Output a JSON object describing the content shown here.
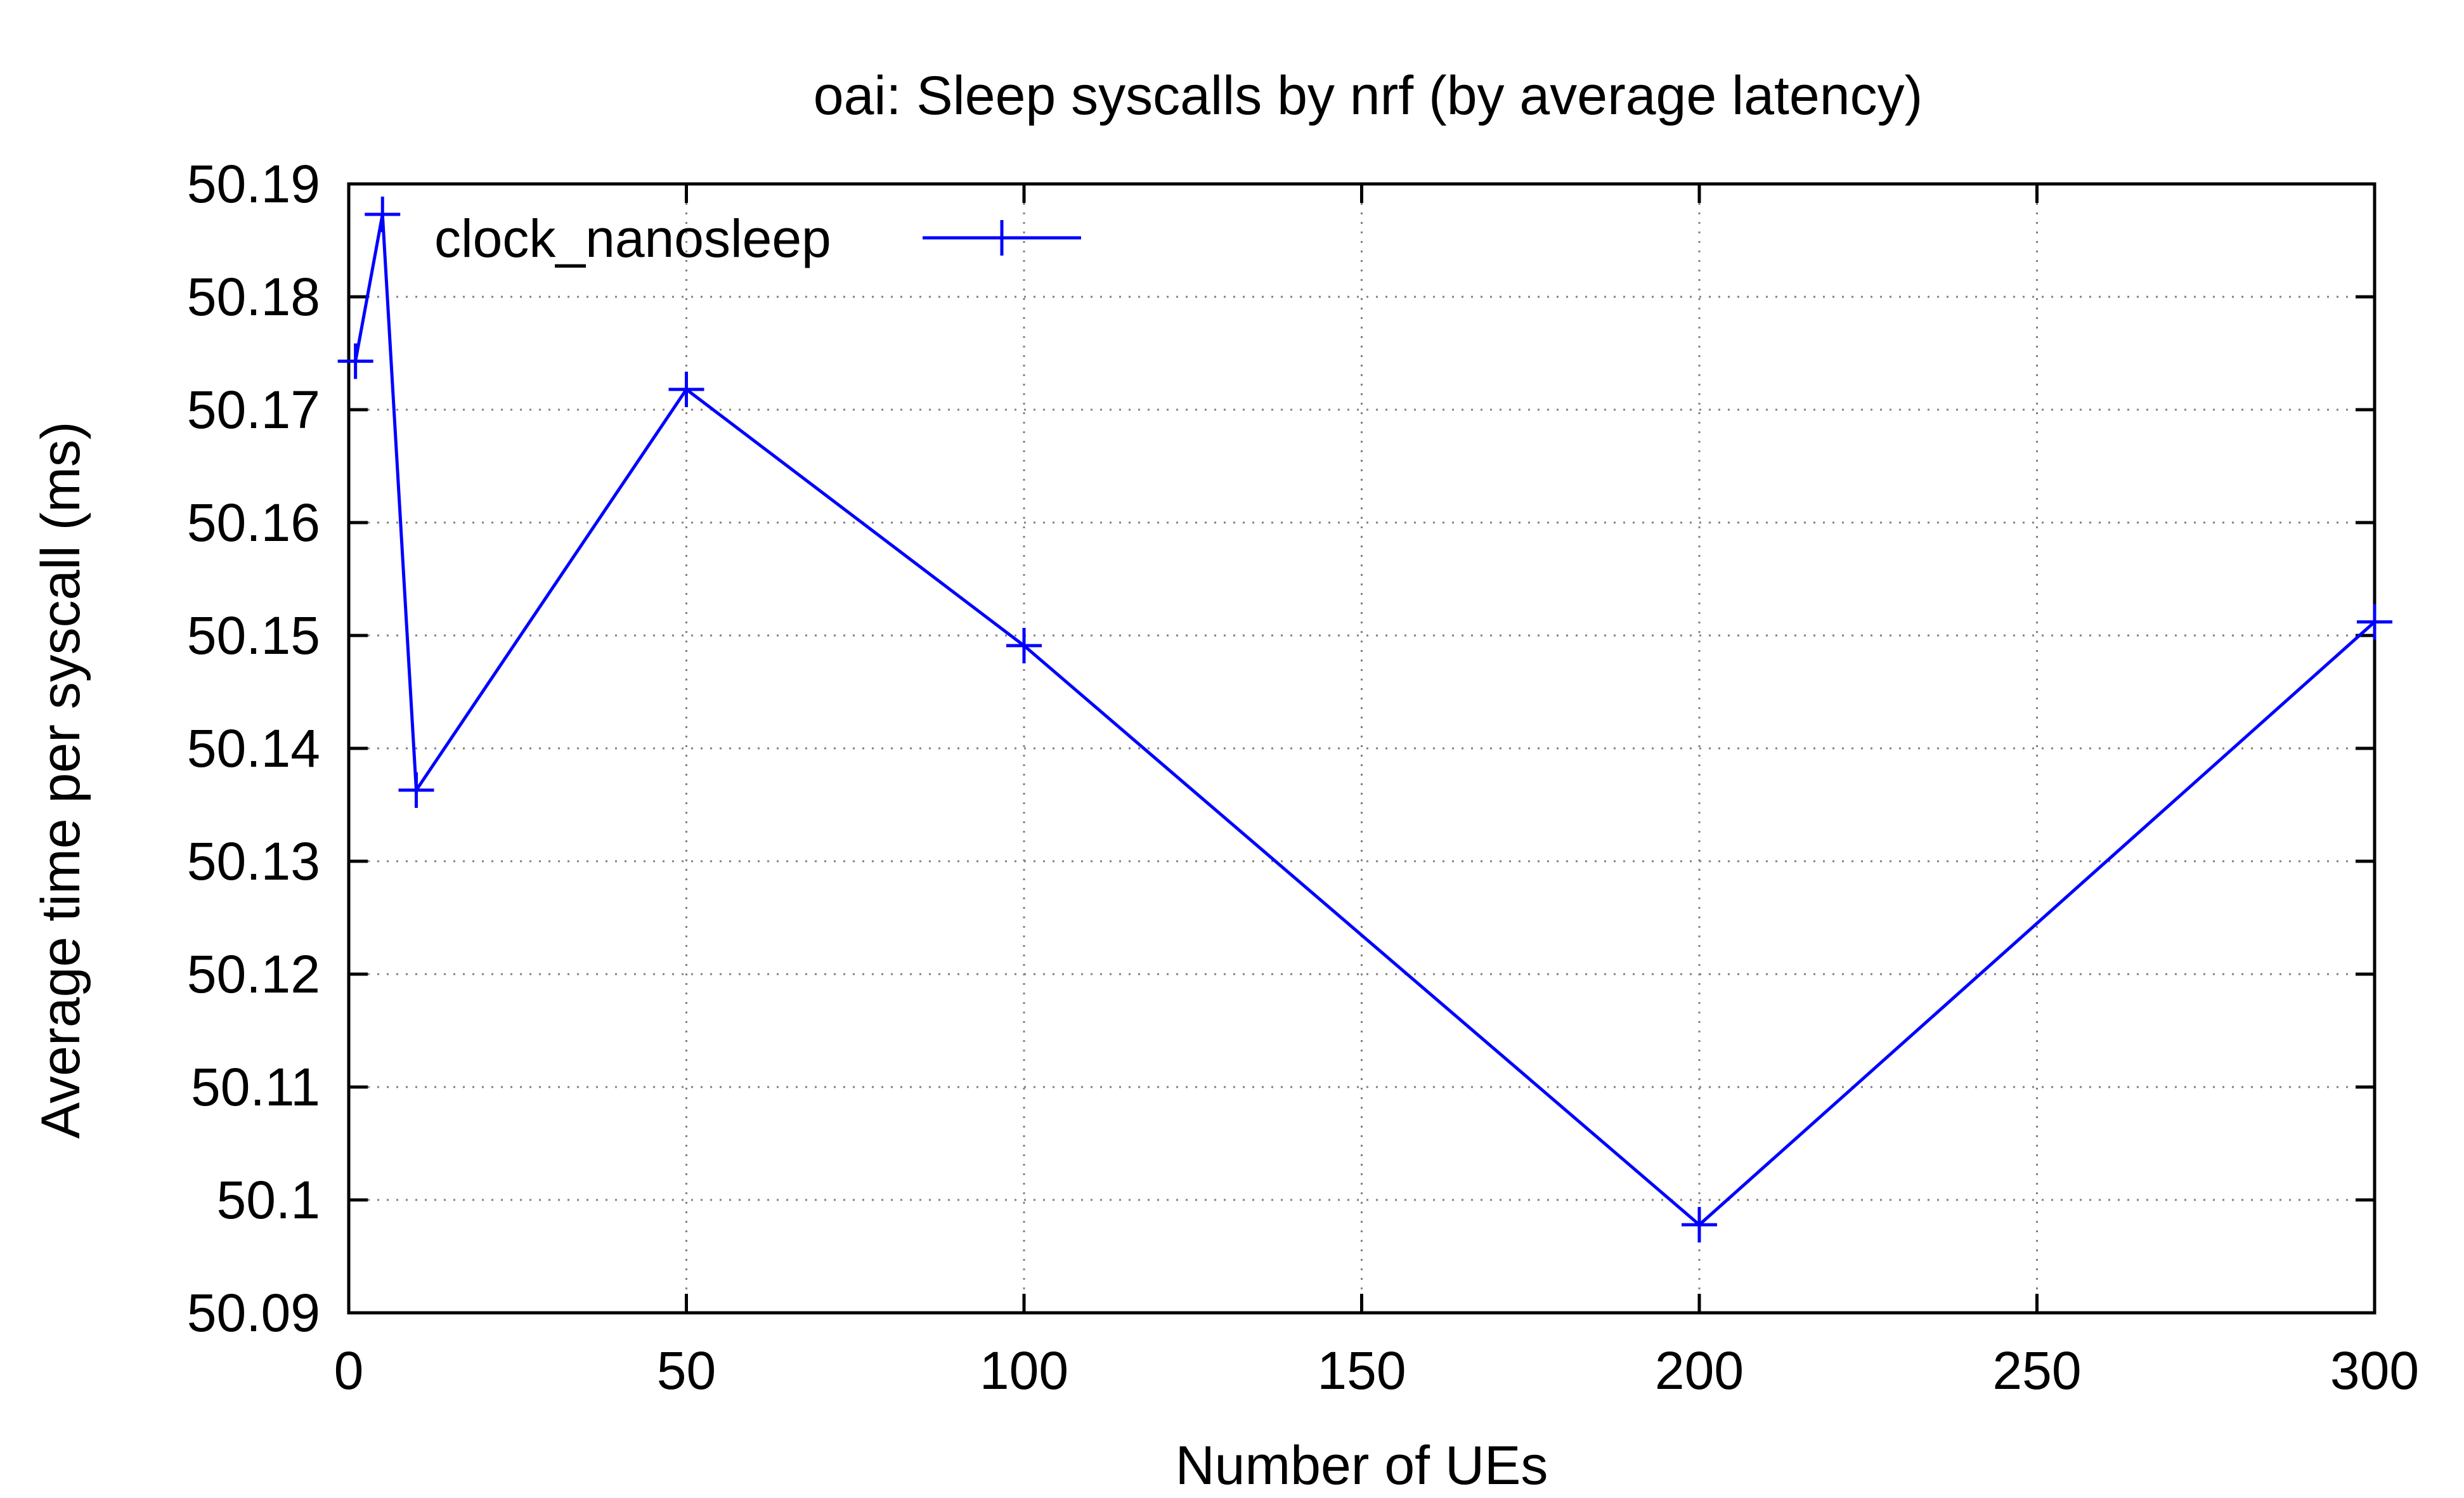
{
  "chart_data": {
    "type": "line",
    "title": "oai: Sleep syscalls by nrf (by average latency)",
    "xlabel": "Number of UEs",
    "ylabel": "Average time per syscall (ms)",
    "xlim": [
      0,
      300
    ],
    "ylim": [
      50.09,
      50.19
    ],
    "xticks": [
      0,
      50,
      100,
      150,
      200,
      250,
      300
    ],
    "xtick_labels": [
      "0",
      "50",
      "100",
      "150",
      "200",
      "250",
      "300"
    ],
    "yticks": [
      50.09,
      50.1,
      50.11,
      50.12,
      50.13,
      50.14,
      50.15,
      50.16,
      50.17,
      50.18,
      50.19
    ],
    "ytick_labels": [
      "50.09",
      "50.1",
      "50.11",
      "50.12",
      "50.13",
      "50.14",
      "50.15",
      "50.16",
      "50.17",
      "50.18",
      "50.19"
    ],
    "grid": true,
    "legend_position": "top-left",
    "series": [
      {
        "name": "clock_nanosleep",
        "color": "#0000ff",
        "marker": "plus",
        "x": [
          1,
          5,
          10,
          50,
          100,
          200,
          300
        ],
        "y": [
          50.1743,
          50.1873,
          50.1363,
          50.1718,
          50.1491,
          50.0978,
          50.1512
        ]
      }
    ]
  }
}
